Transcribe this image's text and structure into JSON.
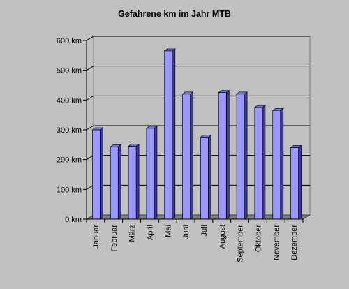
{
  "chart_data": {
    "type": "bar",
    "title": "Gefahrene km im Jahr MTB",
    "xlabel": "",
    "ylabel": "",
    "categories": [
      "Januar",
      "Februar",
      "März",
      "April",
      "Mai",
      "Juni",
      "Juli",
      "August",
      "September",
      "Oktober",
      "November",
      "Dezember"
    ],
    "values": [
      300,
      243,
      245,
      305,
      565,
      420,
      275,
      425,
      420,
      375,
      365,
      240
    ],
    "ylim": [
      0,
      600
    ],
    "yticks": [
      0,
      100,
      200,
      300,
      400,
      500,
      600
    ],
    "y_unit": "km",
    "grid": true,
    "three_d": true,
    "colors": {
      "background": "#c0c0c0",
      "plot_back": "#c0c0c0",
      "floor": "#808080",
      "bar_front": "#9999ff",
      "bar_side": "#3c3c9c",
      "bar_top": "#7a7ad4",
      "bar_edge": "#000000",
      "gridline": "#000000"
    }
  }
}
